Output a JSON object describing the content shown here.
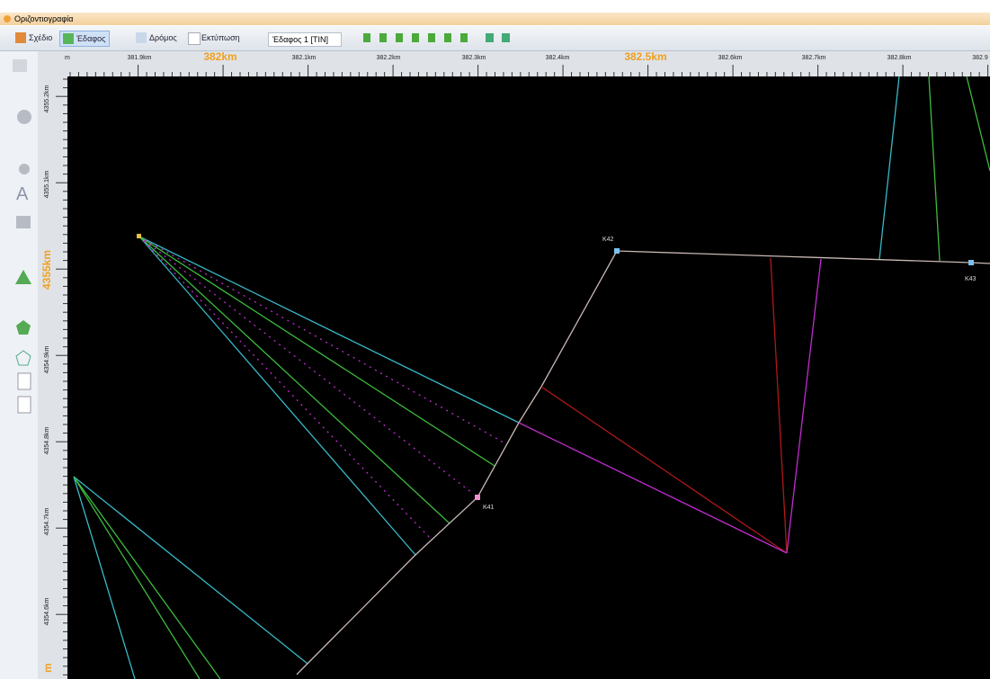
{
  "window": {
    "title": "Οριζοντιογραφία"
  },
  "tabs": [
    "Σχέδιο",
    "Έδαφος",
    "Δρόμος",
    "Εκτύπωση"
  ],
  "dropdown": "Έδαφος 1 [TIN]",
  "ruler_top": {
    "left_edge": "m",
    "labels": [
      "381.9km",
      "382km",
      "382.1km",
      "382.2km",
      "382.3km",
      "382.4km",
      "382.5km",
      "382.6km",
      "382.7km",
      "382.8km",
      "382.9"
    ]
  },
  "ruler_left": {
    "labels": [
      "4355.2km",
      "4355.1km",
      "4355km",
      "4354.9km",
      "4354.8km",
      "4354.7km",
      "4354.6km"
    ],
    "bottom_edge": "m"
  },
  "points": [
    "K41",
    "K42",
    "K43"
  ]
}
